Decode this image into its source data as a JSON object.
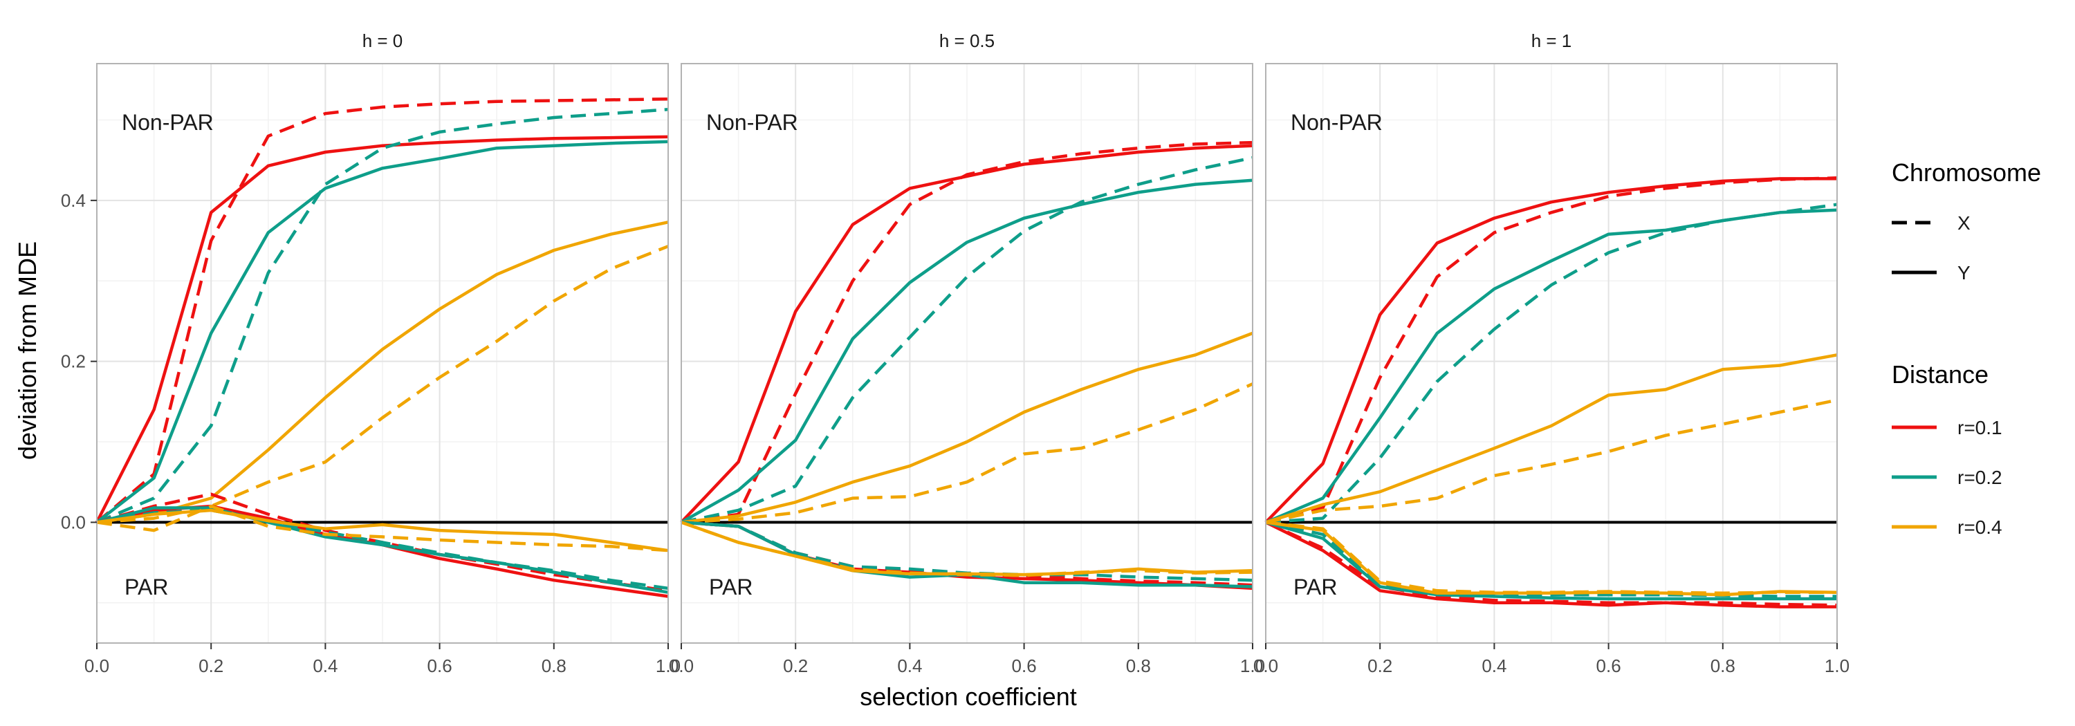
{
  "chart_data": {
    "type": "line",
    "xlabel": "selection coefficient",
    "ylabel": "deviation from MDE",
    "xlim": [
      0.0,
      1.0
    ],
    "ylim": [
      -0.15,
      0.57
    ],
    "x_ticks": [
      0.0,
      0.2,
      0.4,
      0.6,
      0.8,
      1.0
    ],
    "x_tick_labels": [
      "0.0",
      "0.2",
      "0.4",
      "0.6",
      "0.8",
      "1.0"
    ],
    "y_ticks": [
      0.0,
      0.2,
      0.4
    ],
    "y_tick_labels": [
      "0.0",
      "0.2",
      "0.4"
    ],
    "x": [
      0.0,
      0.1,
      0.2,
      0.3,
      0.4,
      0.5,
      0.6,
      0.7,
      0.8,
      0.9,
      1.0
    ],
    "grid": true,
    "hline": 0.0,
    "annotations": [
      "Non-PAR",
      "PAR"
    ],
    "legend": {
      "placement": "right",
      "chromosome": {
        "title": "Chromosome",
        "items": [
          {
            "label": "X",
            "dash": "dashed"
          },
          {
            "label": "Y",
            "dash": "solid"
          }
        ]
      },
      "distance": {
        "title": "Distance",
        "items": [
          {
            "label": "r=0.1",
            "color": "#EE1111"
          },
          {
            "label": "r=0.2",
            "color": "#0E9E8A"
          },
          {
            "label": "r=0.4",
            "color": "#F0A500"
          }
        ]
      }
    },
    "panels": [
      {
        "strip": "h = 0",
        "series": [
          {
            "region": "Non-PAR",
            "chromosome": "Y",
            "distance": "r=0.1",
            "values": [
              0.0,
              0.14,
              0.385,
              0.443,
              0.46,
              0.468,
              0.472,
              0.475,
              0.477,
              0.478,
              0.479
            ]
          },
          {
            "region": "Non-PAR",
            "chromosome": "X",
            "distance": "r=0.1",
            "values": [
              0.0,
              0.06,
              0.35,
              0.48,
              0.508,
              0.516,
              0.52,
              0.523,
              0.524,
              0.525,
              0.526
            ]
          },
          {
            "region": "Non-PAR",
            "chromosome": "Y",
            "distance": "r=0.2",
            "values": [
              0.0,
              0.055,
              0.235,
              0.36,
              0.415,
              0.44,
              0.452,
              0.465,
              0.468,
              0.471,
              0.473
            ]
          },
          {
            "region": "Non-PAR",
            "chromosome": "X",
            "distance": "r=0.2",
            "values": [
              0.0,
              0.03,
              0.12,
              0.31,
              0.42,
              0.465,
              0.485,
              0.495,
              0.503,
              0.508,
              0.513
            ]
          },
          {
            "region": "Non-PAR",
            "chromosome": "Y",
            "distance": "r=0.4",
            "values": [
              0.0,
              0.01,
              0.03,
              0.09,
              0.155,
              0.215,
              0.265,
              0.308,
              0.338,
              0.358,
              0.373
            ]
          },
          {
            "region": "Non-PAR",
            "chromosome": "X",
            "distance": "r=0.4",
            "values": [
              0.0,
              0.005,
              0.02,
              0.05,
              0.075,
              0.13,
              0.18,
              0.225,
              0.275,
              0.315,
              0.343
            ]
          },
          {
            "region": "PAR",
            "chromosome": "Y",
            "distance": "r=0.1",
            "values": [
              0.0,
              0.015,
              0.02,
              0.005,
              -0.015,
              -0.028,
              -0.045,
              -0.058,
              -0.072,
              -0.082,
              -0.092
            ]
          },
          {
            "region": "PAR",
            "chromosome": "X",
            "distance": "r=0.1",
            "values": [
              0.0,
              0.02,
              0.035,
              0.01,
              -0.01,
              -0.025,
              -0.04,
              -0.052,
              -0.065,
              -0.075,
              -0.085
            ]
          },
          {
            "region": "PAR",
            "chromosome": "Y",
            "distance": "r=0.2",
            "values": [
              0.0,
              0.018,
              0.018,
              0.0,
              -0.018,
              -0.028,
              -0.04,
              -0.05,
              -0.062,
              -0.075,
              -0.087
            ]
          },
          {
            "region": "PAR",
            "chromosome": "X",
            "distance": "r=0.2",
            "values": [
              0.0,
              0.012,
              0.015,
              0.002,
              -0.012,
              -0.025,
              -0.038,
              -0.05,
              -0.06,
              -0.072,
              -0.082
            ]
          },
          {
            "region": "PAR",
            "chromosome": "Y",
            "distance": "r=0.4",
            "values": [
              0.0,
              0.01,
              0.015,
              0.002,
              -0.008,
              -0.003,
              -0.01,
              -0.013,
              -0.015,
              -0.025,
              -0.035
            ]
          },
          {
            "region": "PAR",
            "chromosome": "X",
            "distance": "r=0.4",
            "values": [
              0.0,
              -0.01,
              0.02,
              -0.005,
              -0.015,
              -0.018,
              -0.022,
              -0.025,
              -0.028,
              -0.03,
              -0.035
            ]
          }
        ]
      },
      {
        "strip": "h = 0.5",
        "series": [
          {
            "region": "Non-PAR",
            "chromosome": "Y",
            "distance": "r=0.1",
            "values": [
              0.0,
              0.075,
              0.262,
              0.37,
              0.415,
              0.43,
              0.445,
              0.452,
              0.46,
              0.465,
              0.468
            ]
          },
          {
            "region": "Non-PAR",
            "chromosome": "X",
            "distance": "r=0.1",
            "values": [
              0.0,
              0.01,
              0.16,
              0.3,
              0.395,
              0.432,
              0.448,
              0.458,
              0.465,
              0.47,
              0.472
            ]
          },
          {
            "region": "Non-PAR",
            "chromosome": "Y",
            "distance": "r=0.2",
            "values": [
              0.0,
              0.04,
              0.102,
              0.228,
              0.298,
              0.348,
              0.378,
              0.395,
              0.41,
              0.42,
              0.425
            ]
          },
          {
            "region": "Non-PAR",
            "chromosome": "X",
            "distance": "r=0.2",
            "values": [
              0.0,
              0.015,
              0.045,
              0.155,
              0.23,
              0.305,
              0.362,
              0.398,
              0.42,
              0.438,
              0.453
            ]
          },
          {
            "region": "Non-PAR",
            "chromosome": "Y",
            "distance": "r=0.4",
            "values": [
              0.0,
              0.008,
              0.025,
              0.05,
              0.07,
              0.1,
              0.137,
              0.165,
              0.19,
              0.208,
              0.235
            ]
          },
          {
            "region": "Non-PAR",
            "chromosome": "X",
            "distance": "r=0.4",
            "values": [
              0.0,
              0.004,
              0.012,
              0.03,
              0.032,
              0.05,
              0.085,
              0.092,
              0.115,
              0.14,
              0.172
            ]
          },
          {
            "region": "PAR",
            "chromosome": "Y",
            "distance": "r=0.1",
            "values": [
              0.0,
              -0.005,
              -0.04,
              -0.058,
              -0.062,
              -0.068,
              -0.07,
              -0.072,
              -0.075,
              -0.078,
              -0.082
            ]
          },
          {
            "region": "PAR",
            "chromosome": "X",
            "distance": "r=0.1",
            "values": [
              0.0,
              -0.005,
              -0.038,
              -0.055,
              -0.06,
              -0.064,
              -0.066,
              -0.07,
              -0.073,
              -0.075,
              -0.078
            ]
          },
          {
            "region": "PAR",
            "chromosome": "Y",
            "distance": "r=0.2",
            "values": [
              0.0,
              -0.005,
              -0.04,
              -0.06,
              -0.068,
              -0.065,
              -0.075,
              -0.075,
              -0.078,
              -0.078,
              -0.08
            ]
          },
          {
            "region": "PAR",
            "chromosome": "X",
            "distance": "r=0.2",
            "values": [
              0.0,
              -0.005,
              -0.038,
              -0.055,
              -0.058,
              -0.063,
              -0.065,
              -0.065,
              -0.068,
              -0.07,
              -0.072
            ]
          },
          {
            "region": "PAR",
            "chromosome": "Y",
            "distance": "r=0.4",
            "values": [
              0.0,
              -0.025,
              -0.042,
              -0.06,
              -0.064,
              -0.064,
              -0.065,
              -0.063,
              -0.058,
              -0.062,
              -0.06
            ]
          },
          {
            "region": "PAR",
            "chromosome": "X",
            "distance": "r=0.4",
            "values": [
              0.0,
              -0.025,
              -0.042,
              -0.058,
              -0.063,
              -0.065,
              -0.066,
              -0.062,
              -0.06,
              -0.063,
              -0.062
            ]
          }
        ]
      },
      {
        "strip": "h = 1",
        "series": [
          {
            "region": "Non-PAR",
            "chromosome": "Y",
            "distance": "r=0.1",
            "values": [
              0.0,
              0.073,
              0.258,
              0.347,
              0.378,
              0.398,
              0.41,
              0.418,
              0.424,
              0.427,
              0.427
            ]
          },
          {
            "region": "Non-PAR",
            "chromosome": "X",
            "distance": "r=0.1",
            "values": [
              0.0,
              0.018,
              0.18,
              0.305,
              0.36,
              0.385,
              0.405,
              0.415,
              0.422,
              0.426,
              0.428
            ]
          },
          {
            "region": "Non-PAR",
            "chromosome": "Y",
            "distance": "r=0.2",
            "values": [
              0.0,
              0.03,
              0.13,
              0.235,
              0.29,
              0.325,
              0.358,
              0.363,
              0.375,
              0.385,
              0.388
            ]
          },
          {
            "region": "Non-PAR",
            "chromosome": "X",
            "distance": "r=0.2",
            "values": [
              0.0,
              0.005,
              0.08,
              0.175,
              0.24,
              0.295,
              0.335,
              0.36,
              0.375,
              0.385,
              0.395
            ]
          },
          {
            "region": "Non-PAR",
            "chromosome": "Y",
            "distance": "r=0.4",
            "values": [
              0.0,
              0.022,
              0.038,
              0.065,
              0.092,
              0.12,
              0.158,
              0.165,
              0.19,
              0.195,
              0.208
            ]
          },
          {
            "region": "Non-PAR",
            "chromosome": "X",
            "distance": "r=0.4",
            "values": [
              0.0,
              0.015,
              0.02,
              0.03,
              0.058,
              0.072,
              0.088,
              0.108,
              0.122,
              0.137,
              0.152
            ]
          },
          {
            "region": "PAR",
            "chromosome": "Y",
            "distance": "r=0.1",
            "values": [
              0.0,
              -0.035,
              -0.085,
              -0.095,
              -0.1,
              -0.1,
              -0.103,
              -0.1,
              -0.103,
              -0.105,
              -0.105
            ]
          },
          {
            "region": "PAR",
            "chromosome": "X",
            "distance": "r=0.1",
            "values": [
              0.0,
              -0.032,
              -0.08,
              -0.092,
              -0.097,
              -0.098,
              -0.1,
              -0.1,
              -0.1,
              -0.102,
              -0.103
            ]
          },
          {
            "region": "PAR",
            "chromosome": "Y",
            "distance": "r=0.2",
            "values": [
              0.0,
              -0.02,
              -0.08,
              -0.09,
              -0.092,
              -0.094,
              -0.095,
              -0.095,
              -0.095,
              -0.095,
              -0.095
            ]
          },
          {
            "region": "PAR",
            "chromosome": "X",
            "distance": "r=0.2",
            "values": [
              0.0,
              -0.015,
              -0.078,
              -0.088,
              -0.09,
              -0.09,
              -0.09,
              -0.09,
              -0.091,
              -0.092,
              -0.092
            ]
          },
          {
            "region": "PAR",
            "chromosome": "Y",
            "distance": "r=0.4",
            "values": [
              0.0,
              -0.01,
              -0.075,
              -0.088,
              -0.088,
              -0.088,
              -0.087,
              -0.088,
              -0.09,
              -0.086,
              -0.087
            ]
          },
          {
            "region": "PAR",
            "chromosome": "X",
            "distance": "r=0.4",
            "values": [
              0.0,
              -0.008,
              -0.073,
              -0.085,
              -0.087,
              -0.087,
              -0.086,
              -0.087,
              -0.088,
              -0.087,
              -0.087
            ]
          }
        ]
      }
    ]
  }
}
